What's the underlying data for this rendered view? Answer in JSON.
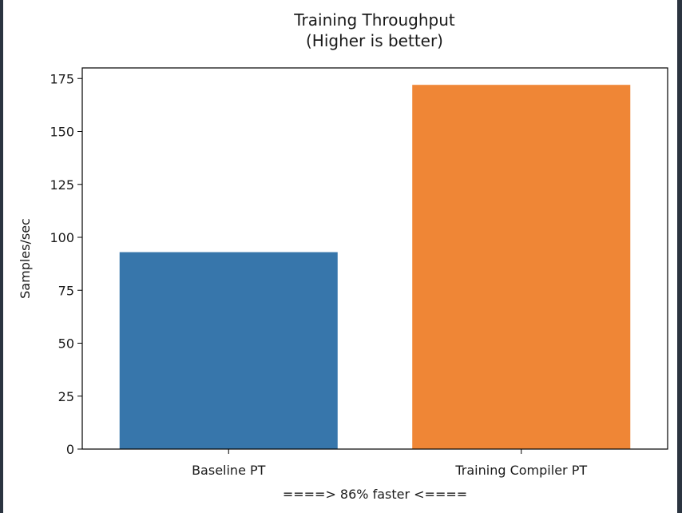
{
  "colors": {
    "frame_dark": "#2b3440",
    "axis": "#000000"
  },
  "chart_data": {
    "type": "bar",
    "title": "Training Throughput\n(Higher is better)",
    "categories": [
      "Baseline PT",
      "Training Compiler PT"
    ],
    "values": [
      93,
      172
    ],
    "bar_colors": [
      "#3776ab",
      "#ef8636"
    ],
    "xlabel": "====> 86% faster <====",
    "ylabel": "Samples/sec",
    "ylim": [
      0,
      180
    ],
    "yticks": [
      0,
      25,
      50,
      75,
      100,
      125,
      150,
      175
    ],
    "grid": false,
    "legend": "none"
  }
}
